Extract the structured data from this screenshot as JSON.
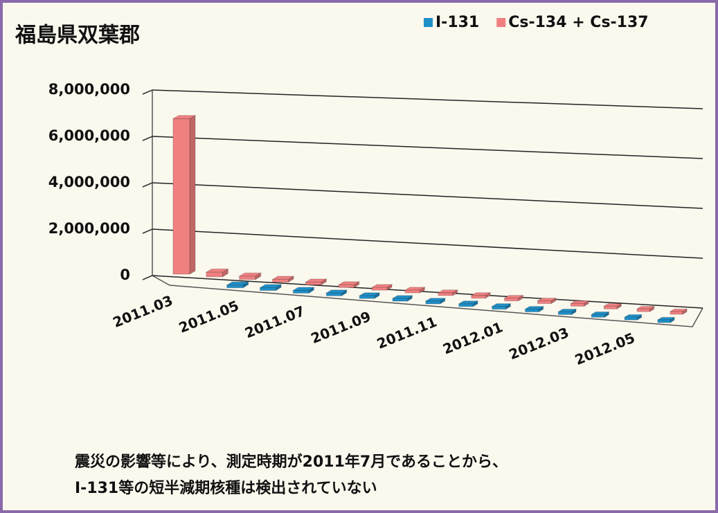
{
  "chart_data": {
    "type": "bar3d",
    "title": "福島県双葉郡",
    "categories": [
      "2011.03",
      null,
      "2011.05",
      null,
      "2011.07",
      null,
      "2011.09",
      null,
      "2011.11",
      null,
      "2012.01",
      null,
      "2012.03",
      null,
      "2012.05",
      null
    ],
    "series": [
      {
        "name": "I-131",
        "color": "#1f8fc8",
        "values": [
          null,
          null,
          0,
          0,
          0,
          0,
          0,
          0,
          0,
          0,
          0,
          0,
          0,
          0,
          0,
          0
        ]
      },
      {
        "name": "Cs-134 + Cs-137",
        "color": "#f08080",
        "values": [
          6700000,
          200000,
          150000,
          30000,
          30000,
          30000,
          30000,
          30000,
          30000,
          30000,
          30000,
          30000,
          30000,
          30000,
          30000,
          30000
        ]
      }
    ],
    "ylim": [
      0,
      8000000
    ],
    "yticks": [
      {
        "value": 0,
        "label": "0"
      },
      {
        "value": 2000000,
        "label": "2,000,000"
      },
      {
        "value": 4000000,
        "label": "4,000,000"
      },
      {
        "value": 6000000,
        "label": "6,000,000"
      },
      {
        "value": 8000000,
        "label": "8,000,000"
      }
    ],
    "grid": true,
    "legend": "top-right",
    "annotation": [
      "震災の影響等により、測定時期が2011年7月であることから、",
      "I-131等の短半減期核種は検出されていない"
    ]
  }
}
